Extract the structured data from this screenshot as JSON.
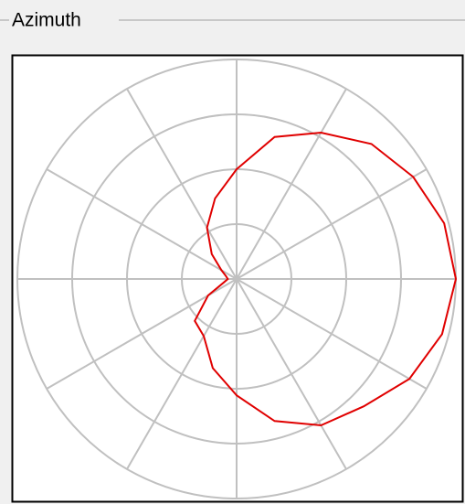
{
  "chart_data": {
    "type": "polar",
    "title": "Azimuth",
    "theta": [
      0,
      15,
      30,
      45,
      60,
      75,
      90,
      105,
      120,
      135,
      150,
      165,
      180,
      195,
      210,
      225,
      240,
      255,
      270,
      285,
      300,
      315,
      330,
      345
    ],
    "values": [
      0.5,
      0.67,
      0.77,
      0.87,
      0.93,
      0.98,
      1.0,
      0.97,
      0.91,
      0.82,
      0.77,
      0.67,
      0.53,
      0.42,
      0.3,
      0.27,
      0.15,
      0.06,
      0.04,
      0.05,
      0.08,
      0.16,
      0.27,
      0.38
    ],
    "color": "#e00000",
    "rlim": [
      0,
      1
    ],
    "rticks": [
      0.25,
      0.5,
      0.75,
      1
    ],
    "thetaticks": [
      0,
      30,
      60,
      90,
      120,
      150,
      180,
      210,
      240,
      270,
      300,
      330
    ],
    "grid": true
  }
}
